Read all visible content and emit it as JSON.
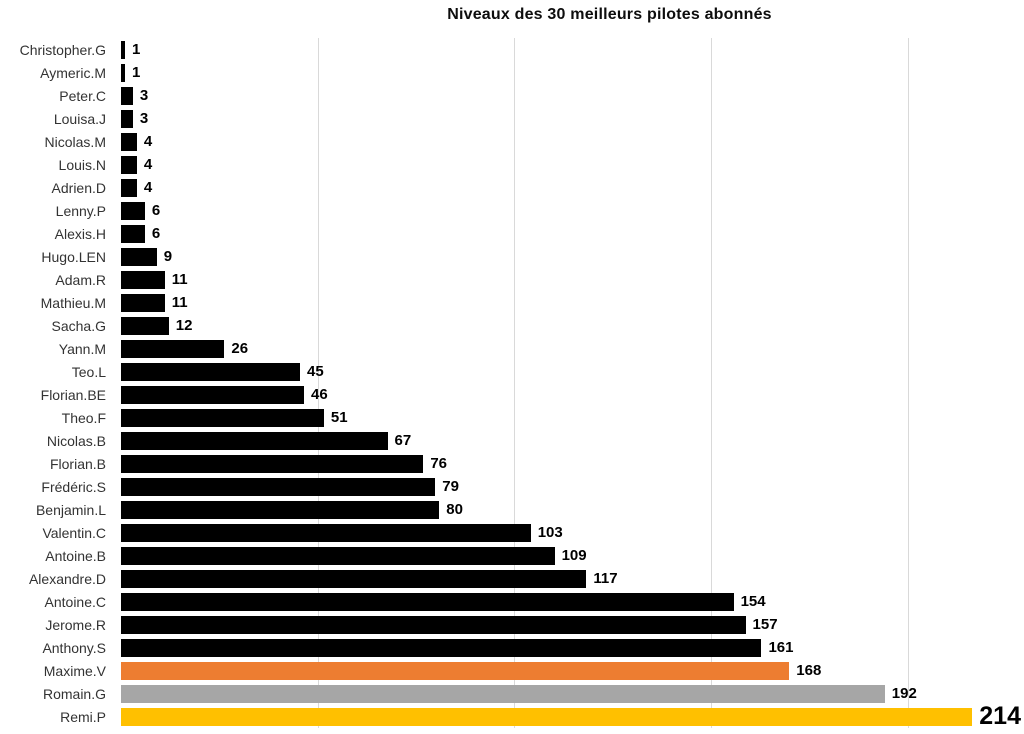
{
  "title": "Niveaux des 30 meilleurs pilotes abonnés",
  "colors": {
    "background": "#ffffff",
    "default_bar": "#000000",
    "highlight_orange": "#ED7D31",
    "highlight_gray": "#A6A6A6",
    "highlight_yellow": "#FFC000",
    "gridline": "#d9d9d9",
    "category_label": "#333333",
    "value_label": "#000000"
  },
  "chart_data": {
    "type": "bar",
    "orientation": "horizontal",
    "title": "Niveaux des 30 meilleurs pilotes abonnés",
    "categories": [
      "Christopher.G",
      "Aymeric.M",
      "Peter.C",
      "Louisa.J",
      "Nicolas.M",
      "Louis.N",
      "Adrien.D",
      "Lenny.P",
      "Alexis.H",
      "Hugo.LEN",
      "Adam.R",
      "Mathieu.M",
      "Sacha.G",
      "Yann.M",
      "Teo.L",
      "Florian.BE",
      "Theo.F",
      "Nicolas.B",
      "Florian.B",
      "Frédéric.S",
      "Benjamin.L",
      "Valentin.C",
      "Antoine.B",
      "Alexandre.D",
      "Antoine.C",
      "Jerome.R",
      "Anthony.S",
      "Maxime.V",
      "Romain.G",
      "Remi.P"
    ],
    "values": [
      1,
      1,
      3,
      3,
      4,
      4,
      4,
      6,
      6,
      9,
      11,
      11,
      12,
      26,
      45,
      46,
      51,
      67,
      76,
      79,
      80,
      103,
      109,
      117,
      154,
      157,
      161,
      168,
      192,
      214
    ],
    "bar_colors": [
      "#000000",
      "#000000",
      "#000000",
      "#000000",
      "#000000",
      "#000000",
      "#000000",
      "#000000",
      "#000000",
      "#000000",
      "#000000",
      "#000000",
      "#000000",
      "#000000",
      "#000000",
      "#000000",
      "#000000",
      "#000000",
      "#000000",
      "#000000",
      "#000000",
      "#000000",
      "#000000",
      "#000000",
      "#000000",
      "#000000",
      "#000000",
      "#ED7D31",
      "#A6A6A6",
      "#FFC000"
    ],
    "xlim": [
      0,
      227
    ],
    "gridline_values": [
      50,
      100,
      150,
      200
    ],
    "grid": "vertical-only",
    "legend": "none",
    "value_labels": "outside-end-bold",
    "emphasized_value_label_index": 29,
    "xlabel": "",
    "ylabel": ""
  }
}
